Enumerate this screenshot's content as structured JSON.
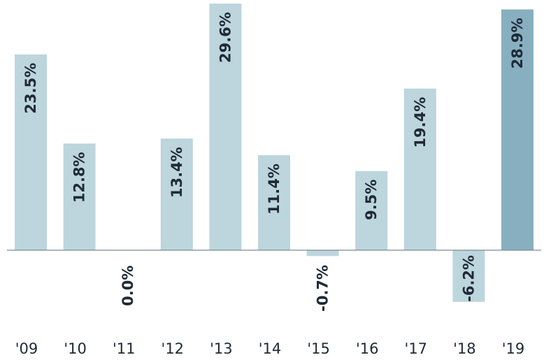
{
  "chart_data": {
    "type": "bar",
    "title": "",
    "xlabel": "",
    "ylabel": "",
    "categories": [
      "'09",
      "'10",
      "'11",
      "'12",
      "'13",
      "'14",
      "'15",
      "'16",
      "'17",
      "'18",
      "'19"
    ],
    "values": [
      23.5,
      12.8,
      0.0,
      13.4,
      29.6,
      11.4,
      -0.7,
      9.5,
      19.4,
      -6.2,
      28.9
    ],
    "data_labels": [
      "23.5%",
      "12.8%",
      "0.0%",
      "13.4%",
      "29.6%",
      "11.4%",
      "-0.7%",
      "9.5%",
      "19.4%",
      "-6.2%",
      "28.9%"
    ],
    "ylim": [
      -8.5,
      30
    ],
    "grid": false,
    "legend": "none",
    "colors": {
      "bar": "#bdd5dd",
      "highlight_bar": "#88afc0",
      "baseline": "#7a8a96",
      "text": "#1f2a36"
    },
    "highlight_index": 10
  }
}
